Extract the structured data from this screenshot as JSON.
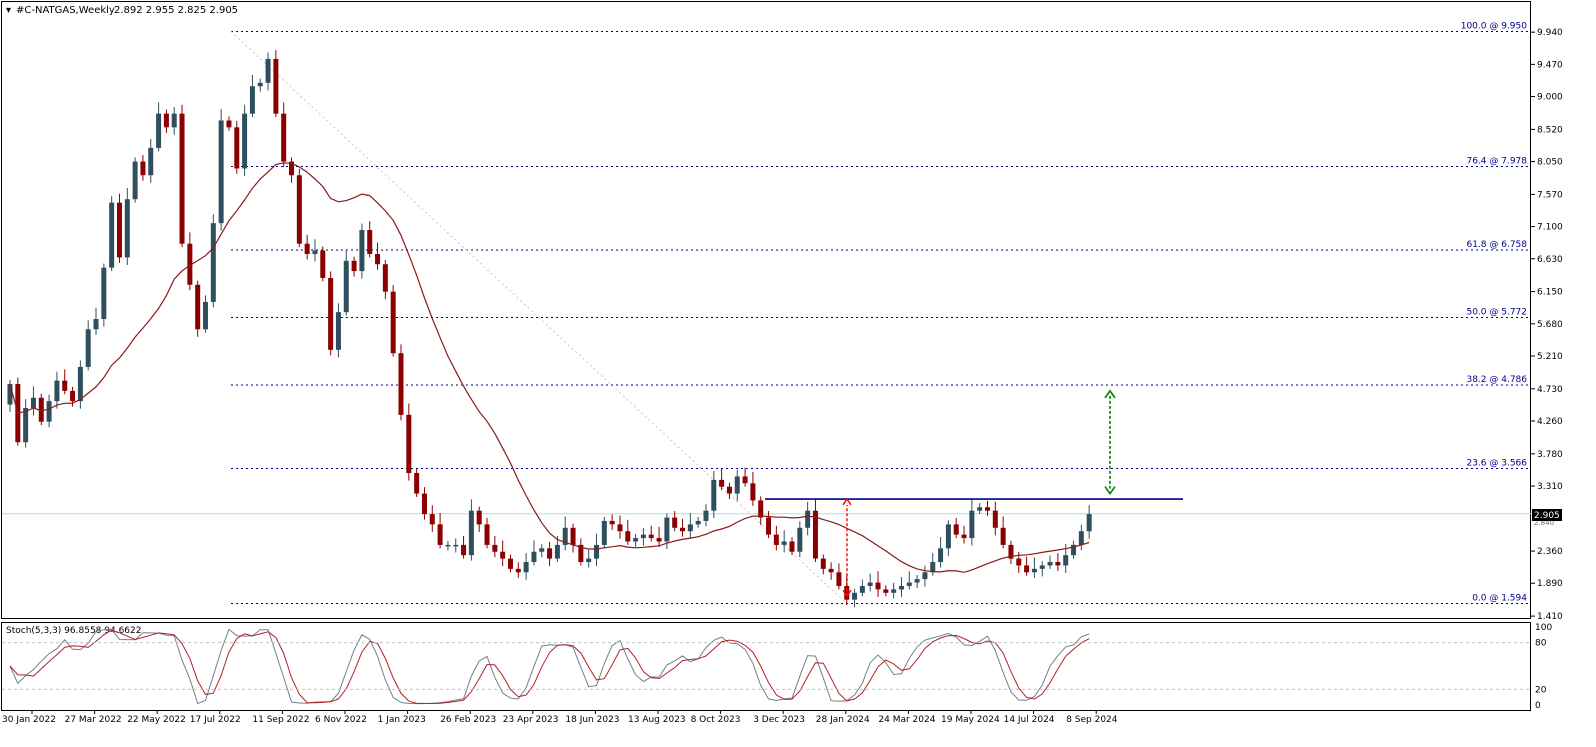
{
  "header": {
    "symbol": "#C-NATGAS,Weekly",
    "ohlc": "2.892 2.955 2.825 2.905"
  },
  "colors": {
    "bull": "#2f4f5f",
    "bear": "#8b0000",
    "ma": "#8b1a1a",
    "fib": "#00008b",
    "resistance": "#00008b",
    "up_arrow": "#008000",
    "down_arrow": "#ff0000",
    "stoch_main": "#708090",
    "stoch_signal": "#b22222",
    "price_line": "#a8dfe8",
    "badge_bg": "#000000",
    "badge_fg": "#ffffff"
  },
  "price_axis": {
    "ticks": [
      "9.940",
      "9.470",
      "9.000",
      "8.520",
      "8.050",
      "7.570",
      "7.100",
      "6.630",
      "6.150",
      "5.680",
      "5.210",
      "4.730",
      "4.260",
      "3.780",
      "3.310",
      "2.360",
      "1.890",
      "1.410"
    ],
    "current_label": "2.905",
    "partial_label": "2.840"
  },
  "stoch": {
    "label": "Stoch(5,3,3) 96.8558 94.6622",
    "ticks": [
      "100",
      "80",
      "20",
      "0"
    ]
  },
  "time_axis": {
    "labels": [
      "30 Jan 2022",
      "27 Mar 2022",
      "22 May 2022",
      "17 Jul 2022",
      "11 Sep 2022",
      "6 Nov 2022",
      "1 Jan 2023",
      "26 Feb 2023",
      "23 Apr 2023",
      "18 Jun 2023",
      "13 Aug 2023",
      "8 Oct 2023",
      "3 Dec 2023",
      "28 Jan 2024",
      "24 Mar 2024",
      "19 May 2024",
      "14 Jul 2024",
      "8 Sep 2024"
    ]
  },
  "chart_data": {
    "type": "candlestick",
    "timeframe": "Weekly",
    "ylim": [
      1.41,
      10.05
    ],
    "fib_levels": [
      {
        "label": "100.0 @ 9.950",
        "value": 9.95
      },
      {
        "label": "76.4 @ 7.978",
        "value": 7.978
      },
      {
        "label": "61.8 @ 6.758",
        "value": 6.758
      },
      {
        "label": "50.0 @ 5.772",
        "value": 5.772
      },
      {
        "label": "38.2 @ 4.786",
        "value": 4.786
      },
      {
        "label": "23.6 @ 3.566",
        "value": 3.566
      },
      {
        "label": "0.0 @ 1.594",
        "value": 1.594
      }
    ],
    "resistance_level": 3.12,
    "last_close": 2.905,
    "closes": [
      4.8,
      3.95,
      4.45,
      4.6,
      4.25,
      4.55,
      4.85,
      4.7,
      4.55,
      5.05,
      5.6,
      5.75,
      6.5,
      7.45,
      6.65,
      7.5,
      8.05,
      7.85,
      8.25,
      8.75,
      8.55,
      8.75,
      6.85,
      6.25,
      5.6,
      6.0,
      7.15,
      8.65,
      8.55,
      7.95,
      8.75,
      9.15,
      9.2,
      9.55,
      8.75,
      8.05,
      7.85,
      6.85,
      6.7,
      6.75,
      6.35,
      5.3,
      5.85,
      6.6,
      6.45,
      7.05,
      6.7,
      6.55,
      6.15,
      5.25,
      4.35,
      3.5,
      3.2,
      2.9,
      2.75,
      2.45,
      2.45,
      2.45,
      2.3,
      2.95,
      2.75,
      2.45,
      2.35,
      2.25,
      2.1,
      2.05,
      2.2,
      2.35,
      2.4,
      2.25,
      2.45,
      2.7,
      2.45,
      2.2,
      2.25,
      2.45,
      2.8,
      2.75,
      2.65,
      2.5,
      2.55,
      2.6,
      2.55,
      2.5,
      2.85,
      2.7,
      2.65,
      2.75,
      2.8,
      2.95,
      3.4,
      3.3,
      3.2,
      3.45,
      3.35,
      3.1,
      2.85,
      2.6,
      2.45,
      2.5,
      2.35,
      2.7,
      2.95,
      2.25,
      2.1,
      2.05,
      1.85,
      1.65,
      1.75,
      1.85,
      1.9,
      1.8,
      1.75,
      1.8,
      1.85,
      1.9,
      1.95,
      2.05,
      2.2,
      2.4,
      2.75,
      2.6,
      2.55,
      2.95,
      3.0,
      2.95,
      2.7,
      2.45,
      2.25,
      2.15,
      2.05,
      2.1,
      2.15,
      2.2,
      2.15,
      2.3,
      2.45,
      2.65,
      2.9
    ]
  }
}
